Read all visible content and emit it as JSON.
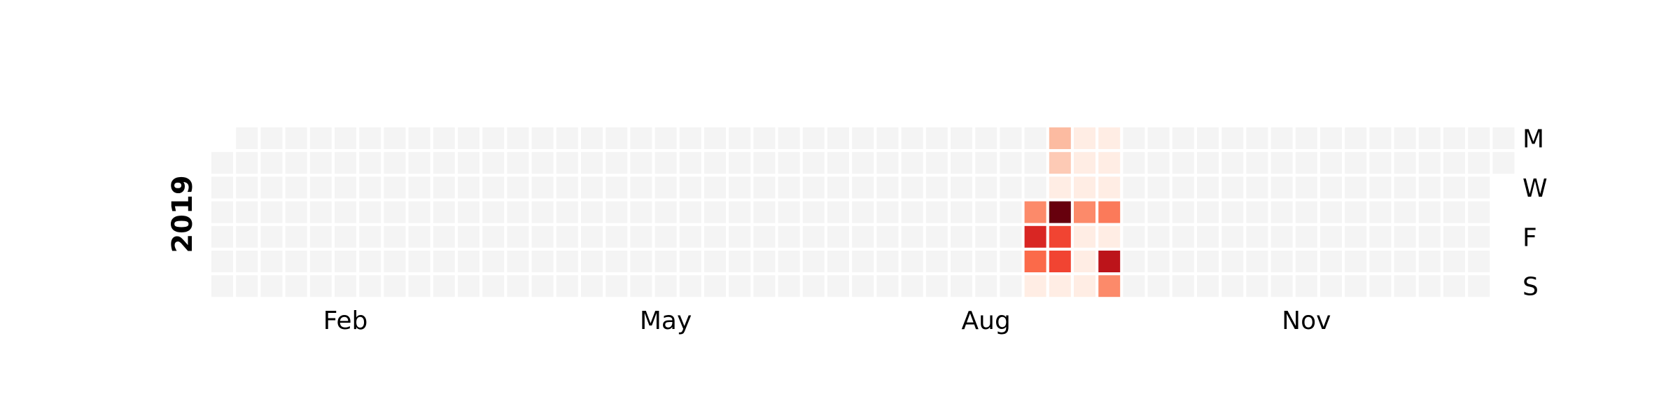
{
  "chart_data": {
    "type": "heatmap",
    "year": "2019",
    "month_labels": [
      {
        "label": "Feb",
        "week": 5
      },
      {
        "label": "May",
        "week": 18
      },
      {
        "label": "Aug",
        "week": 31
      },
      {
        "label": "Nov",
        "week": 44
      }
    ],
    "weekday_labels": [
      {
        "label": "M",
        "day": 0
      },
      {
        "label": "W",
        "day": 2
      },
      {
        "label": "F",
        "day": 4
      },
      {
        "label": "S",
        "day": 6
      }
    ],
    "start_weekday": 1,
    "end_week": 52,
    "end_weekday": 1,
    "empty_color": "#f4f4f4",
    "colormap": "Reds",
    "vmax": 10,
    "values": [
      {
        "week": 33,
        "day": 3,
        "value": 4
      },
      {
        "week": 33,
        "day": 4,
        "value": 7
      },
      {
        "week": 33,
        "day": 5,
        "value": 5
      },
      {
        "week": 33,
        "day": 6,
        "value": 0.5
      },
      {
        "week": 34,
        "day": 0,
        "value": 2.5
      },
      {
        "week": 34,
        "day": 1,
        "value": 2
      },
      {
        "week": 34,
        "day": 2,
        "value": 0.5
      },
      {
        "week": 34,
        "day": 3,
        "value": 10
      },
      {
        "week": 34,
        "day": 4,
        "value": 6
      },
      {
        "week": 34,
        "day": 5,
        "value": 6
      },
      {
        "week": 34,
        "day": 6,
        "value": 0.5
      },
      {
        "week": 35,
        "day": 0,
        "value": 0.5
      },
      {
        "week": 35,
        "day": 1,
        "value": 0.5
      },
      {
        "week": 35,
        "day": 2,
        "value": 0.5
      },
      {
        "week": 35,
        "day": 3,
        "value": 4
      },
      {
        "week": 35,
        "day": 4,
        "value": 0.5
      },
      {
        "week": 35,
        "day": 5,
        "value": 0.5
      },
      {
        "week": 35,
        "day": 6,
        "value": 0.5
      },
      {
        "week": 36,
        "day": 0,
        "value": 0.5
      },
      {
        "week": 36,
        "day": 1,
        "value": 0.5
      },
      {
        "week": 36,
        "day": 2,
        "value": 0.5
      },
      {
        "week": 36,
        "day": 3,
        "value": 4.5
      },
      {
        "week": 36,
        "day": 4,
        "value": 0.5
      },
      {
        "week": 36,
        "day": 5,
        "value": 8
      },
      {
        "week": 36,
        "day": 6,
        "value": 4
      }
    ]
  }
}
